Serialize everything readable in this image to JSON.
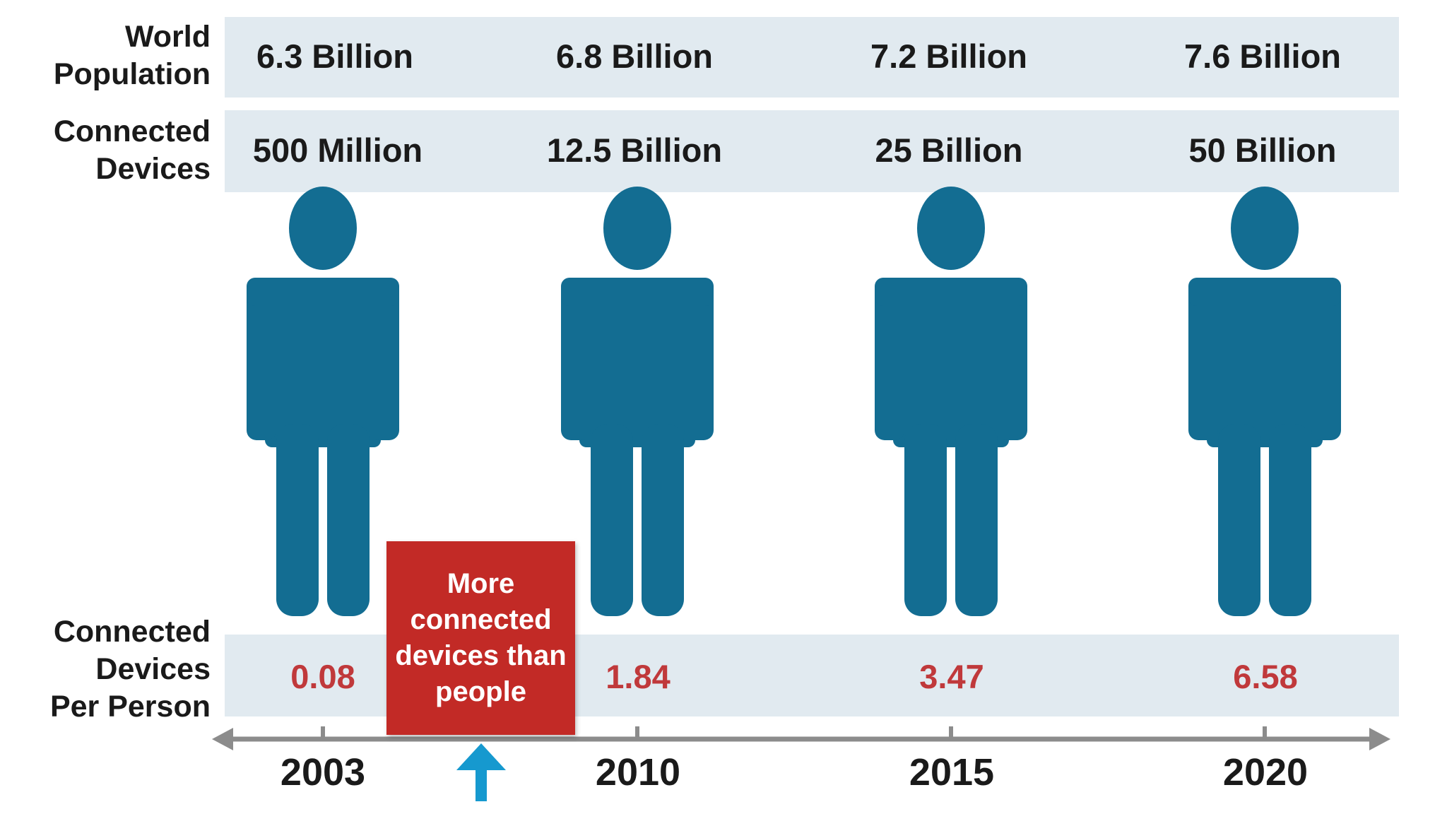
{
  "row_labels": {
    "population": [
      "World",
      "Population"
    ],
    "devices": [
      "Connected",
      "Devices"
    ],
    "per_person": [
      "Connected",
      "Devices",
      "Per Person"
    ]
  },
  "callout": "More connected devices than people",
  "colors": {
    "figure": "#136d92",
    "band": "#e1eaf0",
    "per_person_value": "#c0393b",
    "callout_bg": "#c22a26",
    "axis": "#8c8c8c",
    "arrow": "#1699cf"
  },
  "icons": [
    "person-icon",
    "up-arrow-icon"
  ],
  "chart_data": {
    "type": "table",
    "x": [
      "2003",
      "2010",
      "2015",
      "2020"
    ],
    "world_population": [
      "6.3 Billion",
      "6.8 Billion",
      "7.2 Billion",
      "7.6 Billion"
    ],
    "connected_devices": [
      "500 Million",
      "12.5 Billion",
      "25 Billion",
      "50 Billion"
    ],
    "devices_per_person": [
      "0.08",
      "1.84",
      "3.47",
      "6.58"
    ],
    "devices_per_person_values": [
      0.08,
      1.84,
      3.47,
      6.58
    ]
  }
}
